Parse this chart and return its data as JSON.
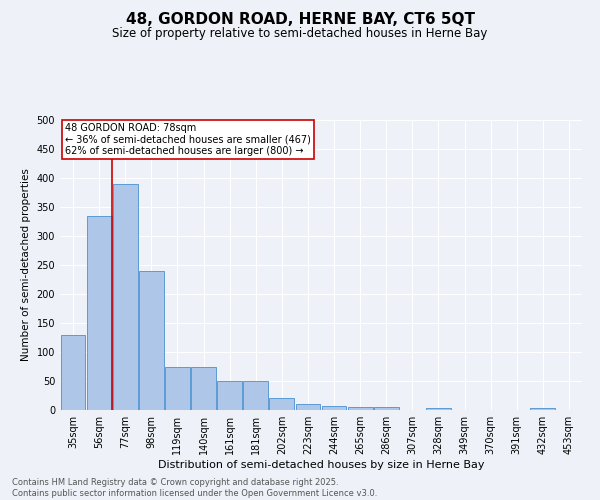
{
  "title": "48, GORDON ROAD, HERNE BAY, CT6 5QT",
  "subtitle": "Size of property relative to semi-detached houses in Herne Bay",
  "xlabel": "Distribution of semi-detached houses by size in Herne Bay",
  "ylabel": "Number of semi-detached properties",
  "categories": [
    "35sqm",
    "56sqm",
    "77sqm",
    "98sqm",
    "119sqm",
    "140sqm",
    "161sqm",
    "181sqm",
    "202sqm",
    "223sqm",
    "244sqm",
    "265sqm",
    "286sqm",
    "307sqm",
    "328sqm",
    "349sqm",
    "370sqm",
    "391sqm",
    "432sqm",
    "453sqm"
  ],
  "values": [
    130,
    335,
    390,
    240,
    75,
    75,
    50,
    50,
    20,
    10,
    7,
    5,
    5,
    0,
    4,
    0,
    0,
    0,
    4,
    0
  ],
  "bar_color": "#aec6e8",
  "bar_edge_color": "#5b9bd5",
  "highlight_bin_index": 2,
  "annotation_title": "48 GORDON ROAD: 78sqm",
  "annotation_line1": "← 36% of semi-detached houses are smaller (467)",
  "annotation_line2": "62% of semi-detached houses are larger (800) →",
  "annotation_box_color": "#ffffff",
  "annotation_box_edge": "#cc0000",
  "vline_color": "#cc0000",
  "ylim": [
    0,
    500
  ],
  "yticks": [
    0,
    50,
    100,
    150,
    200,
    250,
    300,
    350,
    400,
    450,
    500
  ],
  "footer": "Contains HM Land Registry data © Crown copyright and database right 2025.\nContains public sector information licensed under the Open Government Licence v3.0.",
  "background_color": "#eef2f8",
  "grid_color": "#ffffff",
  "title_fontsize": 11,
  "subtitle_fontsize": 8.5,
  "tick_fontsize": 7,
  "ylabel_fontsize": 7.5,
  "xlabel_fontsize": 8,
  "footer_fontsize": 6,
  "ann_fontsize": 7
}
